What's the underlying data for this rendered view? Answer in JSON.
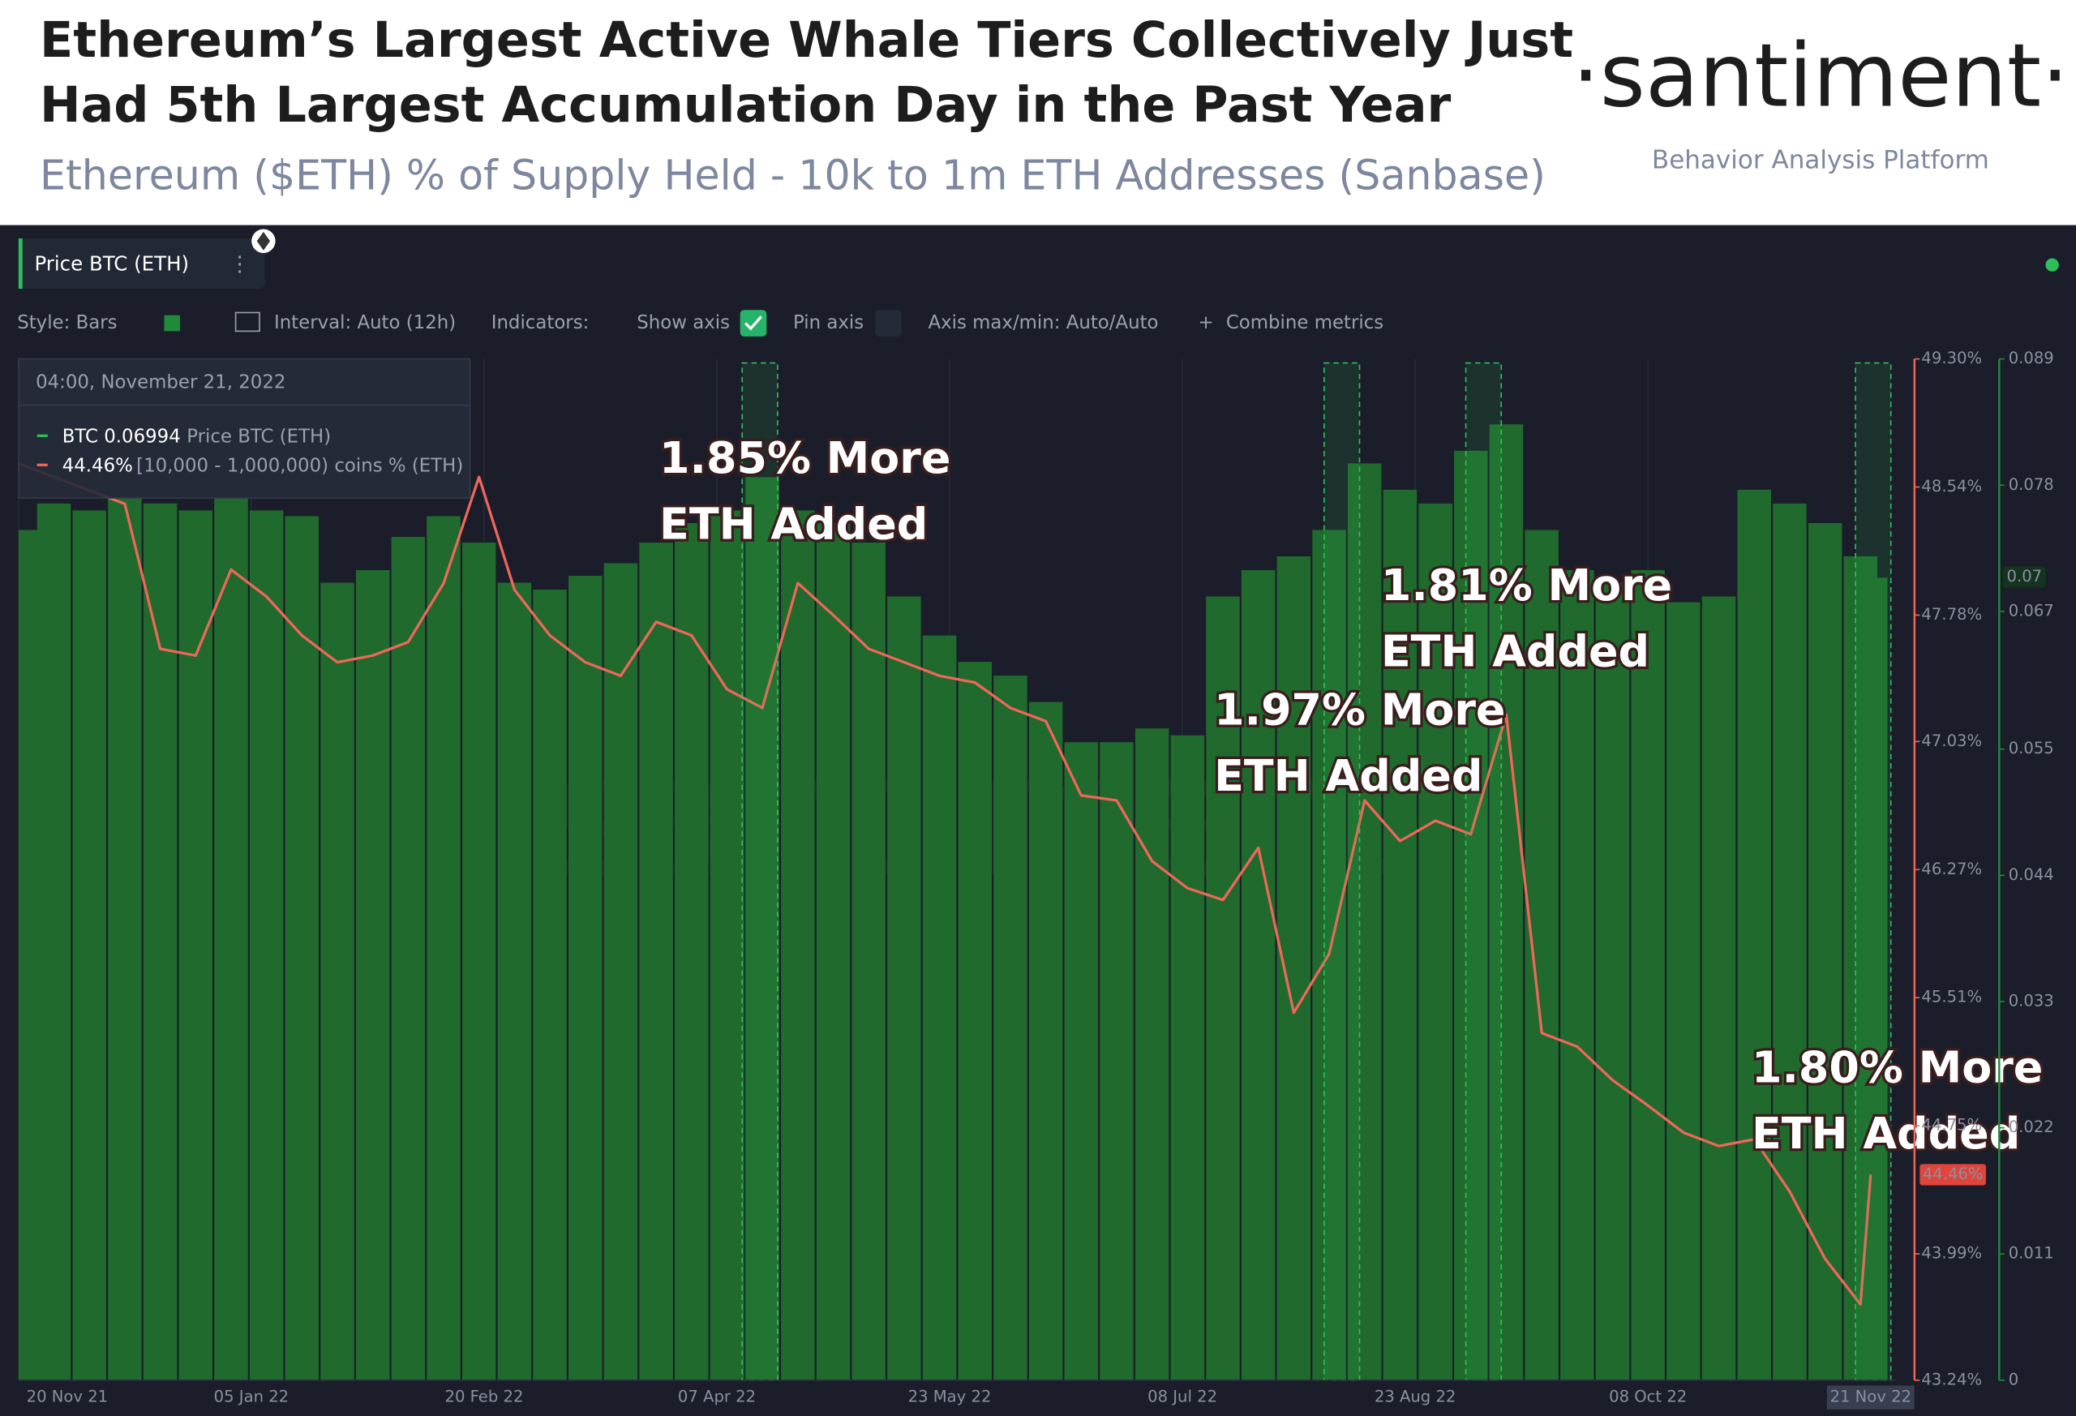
{
  "header": {
    "title_lines": [
      "Ethereum’s Largest Active Whale Tiers Collectively Just",
      "Had 5th Largest Accumulation Day in the Past Year"
    ],
    "subtitle": "Ethereum ($ETH) % of Supply Held - 10k to 1m ETH Addresses (Sanbase)",
    "brand": "·santiment·",
    "tagline": "Behavior Analysis Platform"
  },
  "toolbar": {
    "metric": "Price BTC (ETH)",
    "style": "Style: Bars",
    "interval": "Interval: Auto (12h)",
    "indicators": "Indicators:",
    "show_axis": "Show axis",
    "pin_axis": "Pin axis",
    "axis_range": "Axis max/min: Auto/Auto",
    "combine": "Combine metrics"
  },
  "tooltip": {
    "time": "04:00, November 21, 2022",
    "rows": [
      {
        "value": "BTC 0.06994",
        "name": "Price BTC (ETH)"
      },
      {
        "value": "44.46%",
        "name": "[10,000 - 1,000,000) coins % (ETH)"
      }
    ]
  },
  "chart_data": {
    "type": "bar",
    "watermark": "santiment",
    "x": [
      "2021-11-20",
      "2021-11-27",
      "2021-12-04",
      "2021-12-11",
      "2021-12-18",
      "2021-12-25",
      "2022-01-01",
      "2022-01-08",
      "2022-01-15",
      "2022-01-22",
      "2022-01-29",
      "2022-02-05",
      "2022-02-12",
      "2022-02-19",
      "2022-02-26",
      "2022-03-05",
      "2022-03-12",
      "2022-03-19",
      "2022-03-26",
      "2022-04-02",
      "2022-04-09",
      "2022-04-16",
      "2022-04-23",
      "2022-04-30",
      "2022-05-07",
      "2022-05-14",
      "2022-05-21",
      "2022-05-28",
      "2022-06-04",
      "2022-06-11",
      "2022-06-18",
      "2022-06-25",
      "2022-07-02",
      "2022-07-09",
      "2022-07-16",
      "2022-07-23",
      "2022-07-30",
      "2022-08-06",
      "2022-08-13",
      "2022-08-20",
      "2022-08-27",
      "2022-09-03",
      "2022-09-10",
      "2022-09-17",
      "2022-09-24",
      "2022-10-01",
      "2022-10-08",
      "2022-10-15",
      "2022-10-22",
      "2022-10-29",
      "2022-11-05",
      "2022-11-12",
      "2022-11-19",
      "2022-11-21"
    ],
    "xlim": [
      "2021-11-20",
      "2022-11-26"
    ],
    "xticks": [
      {
        "value": "2021-11-20",
        "label": "20 Nov 21"
      },
      {
        "value": "2022-01-05",
        "label": "05 Jan 22"
      },
      {
        "value": "2022-02-20",
        "label": "20 Feb 22"
      },
      {
        "value": "2022-04-07",
        "label": "07 Apr 22"
      },
      {
        "value": "2022-05-23",
        "label": "23 May 22"
      },
      {
        "value": "2022-07-08",
        "label": "08 Jul 22"
      },
      {
        "value": "2022-08-23",
        "label": "23 Aug 22"
      },
      {
        "value": "2022-10-08",
        "label": "08 Oct 22"
      },
      {
        "value": "2022-11-21",
        "label": "21 Nov 22"
      }
    ],
    "ylim": [
      43.24,
      49.3
    ],
    "yticks": [
      {
        "value": 43.24,
        "label": "43.24%"
      },
      {
        "value": 43.99,
        "label": "43.99%"
      },
      {
        "value": 44.75,
        "label": "44.75%"
      },
      {
        "value": 45.51,
        "label": "45.51%"
      },
      {
        "value": 46.27,
        "label": "46.27%"
      },
      {
        "value": 47.03,
        "label": "47.03%"
      },
      {
        "value": 47.78,
        "label": "47.78%"
      },
      {
        "value": 48.54,
        "label": "48.54%"
      },
      {
        "value": 49.3,
        "label": "49.30%"
      }
    ],
    "y2lim": [
      0,
      0.089
    ],
    "y2ticks": [
      0,
      0.011,
      0.022,
      0.033,
      0.044,
      0.055,
      0.067,
      0.078,
      0.089
    ],
    "grid": true,
    "series": [
      {
        "name": "Price BTC (ETH)",
        "type": "bar",
        "axis": "y2",
        "color": "#1f6a2c",
        "badge": {
          "value": 0.07,
          "label": "0.07"
        },
        "values": [
          0.0741,
          0.0764,
          0.0758,
          0.077,
          0.0764,
          0.0758,
          0.077,
          0.0758,
          0.0753,
          0.0695,
          0.0706,
          0.0735,
          0.0753,
          0.073,
          0.0695,
          0.0689,
          0.0701,
          0.0712,
          0.073,
          0.0747,
          0.0758,
          0.0787,
          0.0758,
          0.0747,
          0.073,
          0.0683,
          0.0649,
          0.0626,
          0.0614,
          0.0591,
          0.0556,
          0.0556,
          0.0568,
          0.0562,
          0.0683,
          0.0706,
          0.0718,
          0.0741,
          0.0799,
          0.0776,
          0.0764,
          0.081,
          0.0833,
          0.0741,
          0.0706,
          0.0695,
          0.0706,
          0.0678,
          0.0683,
          0.0776,
          0.0764,
          0.0747,
          0.0718,
          0.06994
        ]
      },
      {
        "name": "[10,000 - 1,000,000) coins % (ETH)",
        "type": "line",
        "color": "#f0675a",
        "badge": {
          "value": 44.46,
          "label": "44.46%"
        },
        "values": [
          48.68,
          48.6,
          48.52,
          48.44,
          47.58,
          47.54,
          48.05,
          47.89,
          47.66,
          47.5,
          47.54,
          47.62,
          47.97,
          48.6,
          47.93,
          47.66,
          47.5,
          47.42,
          47.74,
          47.66,
          47.34,
          47.23,
          47.97,
          47.78,
          47.58,
          47.5,
          47.42,
          47.38,
          47.23,
          47.15,
          46.71,
          46.68,
          46.32,
          46.16,
          46.09,
          46.4,
          45.42,
          45.77,
          46.68,
          46.44,
          46.56,
          46.48,
          47.19,
          45.3,
          45.22,
          45.02,
          44.87,
          44.71,
          44.63,
          44.67,
          44.36,
          43.96,
          43.69,
          44.46
        ]
      }
    ],
    "annotations": [
      {
        "lines": [
          "1.85% More",
          "ETH Added"
        ],
        "x_range": [
          "2022-04-12",
          "2022-04-19"
        ]
      },
      {
        "lines": [
          "1.97% More",
          "ETH Added"
        ],
        "x_range": [
          "2022-08-05",
          "2022-08-12"
        ]
      },
      {
        "lines": [
          "1.81% More",
          "ETH Added"
        ],
        "x_range": [
          "2022-09-02",
          "2022-09-09"
        ]
      },
      {
        "lines": [
          "1.80% More",
          "ETH Added"
        ],
        "x_range": [
          "2022-11-18",
          "2022-11-25"
        ]
      }
    ]
  }
}
